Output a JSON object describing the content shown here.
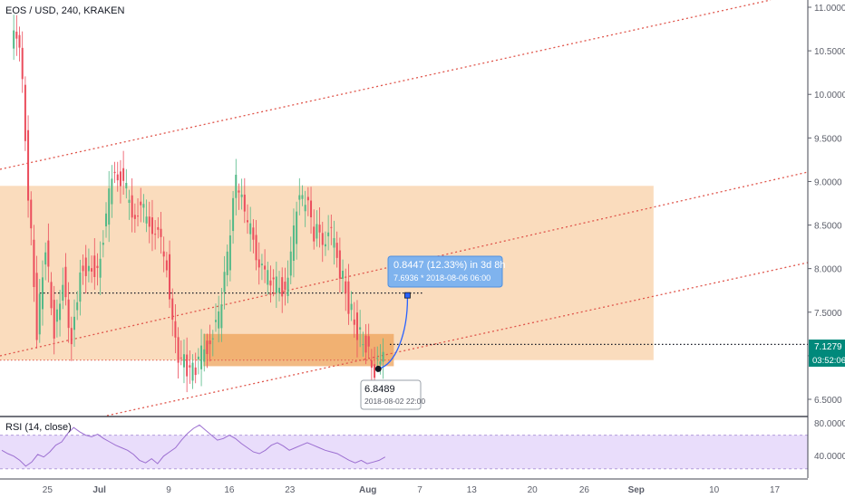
{
  "header": {
    "symbol_line": "EOS / USD, 240, KRAKEN"
  },
  "rsi_panel": {
    "label": "RSI (14, close)",
    "ticks": [
      "80.0000",
      "40.0000"
    ]
  },
  "price_axis": {
    "ticks": [
      "11.0000",
      "10.5000",
      "10.0000",
      "9.5000",
      "9.0000",
      "8.5000",
      "8.0000",
      "7.5000",
      "7.0000",
      "6.5000"
    ],
    "last_price": "7.1279",
    "countdown": "03:52:06",
    "colors": {
      "badge": "#00897b"
    }
  },
  "time_axis": {
    "ticks": [
      "25",
      "Jul",
      "9",
      "16",
      "23",
      "Aug",
      "7",
      "13",
      "20",
      "26",
      "Sep",
      "10",
      "17"
    ]
  },
  "annotations": {
    "measure_main": "0.8447 (12.33%) in 3d 8h",
    "measure_sub": "7.6936  *  2018-08-06  06:00",
    "low_value": "6.8489",
    "low_date": "2018-08-02 22:00"
  },
  "chart_data": {
    "type": "candlestick",
    "title": "EOS / USD, 240, KRAKEN",
    "timeframe": "240",
    "ylim": [
      6.3,
      11.1
    ],
    "x_range": [
      "2018-06-21",
      "2018-09-20"
    ],
    "y_scale": "linear",
    "grid": false,
    "price_path": [
      {
        "x": "2018-06-21",
        "y": 10.6
      },
      {
        "x": "2018-06-22",
        "y": 10.65
      },
      {
        "x": "2018-06-23",
        "y": 8.9
      },
      {
        "x": "2018-06-24",
        "y": 7.3
      },
      {
        "x": "2018-06-25",
        "y": 8.3
      },
      {
        "x": "2018-06-26",
        "y": 7.3
      },
      {
        "x": "2018-06-27",
        "y": 7.9
      },
      {
        "x": "2018-06-28",
        "y": 7.2
      },
      {
        "x": "2018-06-29",
        "y": 8.0
      },
      {
        "x": "2018-06-30",
        "y": 8.05
      },
      {
        "x": "2018-07-01",
        "y": 8.0
      },
      {
        "x": "2018-07-03",
        "y": 9.2
      },
      {
        "x": "2018-07-05",
        "y": 8.7
      },
      {
        "x": "2018-07-07",
        "y": 8.6
      },
      {
        "x": "2018-07-09",
        "y": 8.1
      },
      {
        "x": "2018-07-10",
        "y": 7.1
      },
      {
        "x": "2018-07-11",
        "y": 6.9
      },
      {
        "x": "2018-07-12",
        "y": 6.8
      },
      {
        "x": "2018-07-14",
        "y": 7.2
      },
      {
        "x": "2018-07-15",
        "y": 7.4
      },
      {
        "x": "2018-07-16",
        "y": 8.1
      },
      {
        "x": "2018-07-17",
        "y": 9.0
      },
      {
        "x": "2018-07-18",
        "y": 8.6
      },
      {
        "x": "2018-07-20",
        "y": 8.0
      },
      {
        "x": "2018-07-21",
        "y": 7.8
      },
      {
        "x": "2018-07-23",
        "y": 7.8
      },
      {
        "x": "2018-07-24",
        "y": 8.7
      },
      {
        "x": "2018-07-25",
        "y": 8.8
      },
      {
        "x": "2018-07-26",
        "y": 8.4
      },
      {
        "x": "2018-07-28",
        "y": 8.35
      },
      {
        "x": "2018-07-29",
        "y": 8.0
      },
      {
        "x": "2018-07-30",
        "y": 7.6
      },
      {
        "x": "2018-07-31",
        "y": 7.3
      },
      {
        "x": "2018-08-01",
        "y": 7.15
      },
      {
        "x": "2018-08-02",
        "y": 6.85
      },
      {
        "x": "2018-08-03",
        "y": 7.13
      }
    ],
    "measure": {
      "from": {
        "x": "2018-08-02",
        "y": 6.8489
      },
      "to": {
        "x": "2018-08-06",
        "y": 7.6936
      },
      "change": "0.8447 (12.33%) in 3d 8h"
    },
    "horizontal_lines": [
      7.72,
      7.05,
      6.95
    ],
    "zones": [
      {
        "y_low": 6.95,
        "y_high": 8.95,
        "x_from": "2018-06-21",
        "x_to": "2018-09-03",
        "color": "#f7c99a"
      },
      {
        "y_low": 6.88,
        "y_high": 7.25,
        "x_from": "2018-07-13",
        "x_to": "2018-08-04",
        "color": "#eea35a"
      }
    ],
    "channel_lines_color": "#e0564c",
    "rsi": {
      "label": "RSI (14, close)",
      "bands": [
        30,
        70
      ],
      "ylim": [
        20,
        90
      ],
      "values": [
        52,
        48,
        45,
        40,
        33,
        38,
        47,
        44,
        50,
        58,
        62,
        72,
        79,
        74,
        70,
        68,
        71,
        66,
        62,
        58,
        55,
        52,
        47,
        40,
        37,
        42,
        36,
        45,
        50,
        55,
        64,
        72,
        78,
        82,
        76,
        70,
        64,
        66,
        70,
        66,
        60,
        55,
        50,
        48,
        52,
        58,
        61,
        57,
        52,
        55,
        58,
        61,
        58,
        55,
        52,
        50,
        48,
        44,
        40,
        37,
        40,
        36,
        38,
        40,
        44
      ]
    }
  }
}
